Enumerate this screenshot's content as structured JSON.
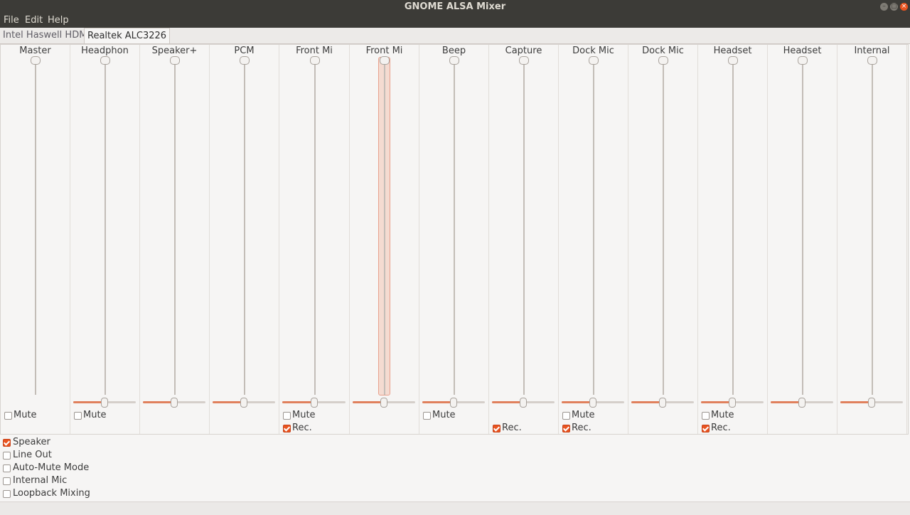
{
  "window": {
    "title": "GNOME ALSA Mixer"
  },
  "menu": [
    "File",
    "Edit",
    "Help"
  ],
  "tabs": [
    {
      "label": "Intel Haswell HDMI",
      "active": false
    },
    {
      "label": "Realtek ALC3226",
      "active": true
    }
  ],
  "colors": {
    "accent": "#e95420",
    "titlebar": "#3c3b37"
  },
  "channels": [
    {
      "name": "Master",
      "volume": 1.0,
      "balance": null,
      "mute": {
        "label": "Mute",
        "checked": false
      },
      "rec": null
    },
    {
      "name": "Headphon",
      "volume": 1.0,
      "balance": 0.5,
      "mute": {
        "label": "Mute",
        "checked": false
      },
      "rec": null
    },
    {
      "name": "Speaker+",
      "volume": 1.0,
      "balance": 0.5,
      "mute": null,
      "rec": null
    },
    {
      "name": "PCM",
      "volume": 1.0,
      "balance": 0.5,
      "mute": null,
      "rec": null
    },
    {
      "name": "Front Mi",
      "volume": 1.0,
      "balance": 0.5,
      "mute": {
        "label": "Mute",
        "checked": false
      },
      "rec": {
        "label": "Rec.",
        "checked": true
      }
    },
    {
      "name": "Front Mi",
      "volume": 1.0,
      "balance": 0.5,
      "mute": null,
      "rec": null,
      "focused": true
    },
    {
      "name": "Beep",
      "volume": 1.0,
      "balance": 0.5,
      "mute": {
        "label": "Mute",
        "checked": false
      },
      "rec": null
    },
    {
      "name": "Capture",
      "volume": 1.0,
      "balance": 0.5,
      "mute": null,
      "rec": {
        "label": "Rec.",
        "checked": true
      }
    },
    {
      "name": "Dock Mic",
      "volume": 1.0,
      "balance": 0.5,
      "mute": {
        "label": "Mute",
        "checked": false
      },
      "rec": {
        "label": "Rec.",
        "checked": true
      }
    },
    {
      "name": "Dock Mic",
      "volume": 1.0,
      "balance": 0.5,
      "mute": null,
      "rec": null
    },
    {
      "name": "Headset",
      "volume": 1.0,
      "balance": 0.5,
      "mute": {
        "label": "Mute",
        "checked": false
      },
      "rec": {
        "label": "Rec.",
        "checked": true
      }
    },
    {
      "name": "Headset",
      "volume": 1.0,
      "balance": 0.5,
      "mute": null,
      "rec": null
    },
    {
      "name": "Internal",
      "volume": 1.0,
      "balance": 0.5,
      "mute": null,
      "rec": null
    }
  ],
  "switches": [
    {
      "label": "Speaker",
      "checked": true
    },
    {
      "label": "Line Out",
      "checked": false
    },
    {
      "label": "Auto-Mute Mode",
      "checked": false
    },
    {
      "label": "Internal Mic",
      "checked": false
    },
    {
      "label": "Loopback Mixing",
      "checked": false
    }
  ]
}
